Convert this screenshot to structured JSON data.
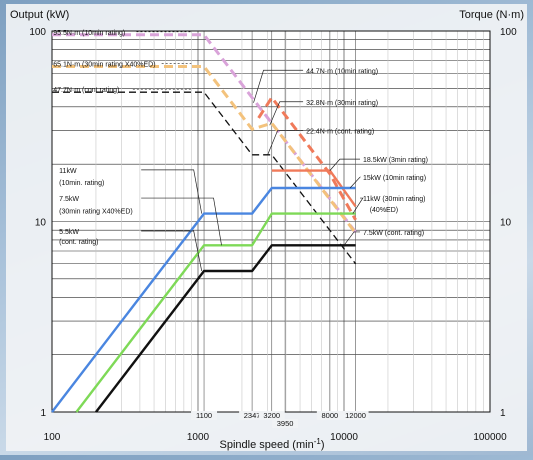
{
  "chart_data": {
    "type": "line",
    "x_scale": "log",
    "y_scale": "log",
    "xlim": [
      100,
      100000
    ],
    "ylim": [
      1,
      100
    ],
    "xlabel": "Spindle speed (min",
    "xlabel_sup": "-1",
    "xlabel_close": ")",
    "ylabel_left": "Output (kW)",
    "ylabel_right": "Torque (N·m)",
    "x_ticks": [
      {
        "value": 100,
        "label": "100"
      },
      {
        "value": 1000,
        "label": "1000"
      },
      {
        "value": 10000,
        "label": "10000"
      },
      {
        "value": 100000,
        "label": "100000"
      }
    ],
    "y_ticks_left": [
      {
        "value": 100,
        "label": "100"
      },
      {
        "value": 10,
        "label": "10"
      },
      {
        "value": 1,
        "label": "1"
      }
    ],
    "y_ticks_right": [
      {
        "value": 100,
        "label": "100"
      },
      {
        "value": 10,
        "label": "10"
      },
      {
        "value": 1,
        "label": "1"
      }
    ],
    "speed_marks": [
      {
        "value": 1100,
        "label": "1100"
      },
      {
        "value": 2347,
        "label": "2347"
      },
      {
        "value": 3200,
        "label": "3200"
      },
      {
        "value": 3950,
        "label": "3950"
      },
      {
        "value": 8000,
        "label": "8000"
      },
      {
        "value": 12000,
        "label": "12000"
      }
    ],
    "grid": true,
    "series": [
      {
        "kind": "torque",
        "style": "dashed",
        "color": "#d9a3d9",
        "x": [
          100,
          1100,
          2347,
          12000
        ],
        "y": [
          95.5,
          95.5,
          44.7,
          8.8
        ]
      },
      {
        "kind": "torque",
        "style": "dashed",
        "color": "#f3c27c",
        "x": [
          100,
          1100,
          2347,
          3200,
          12000
        ],
        "y": [
          65.1,
          65.1,
          30.5,
          32.8,
          8.7
        ]
      },
      {
        "kind": "torque",
        "style": "dashed",
        "color": "#111111",
        "x": [
          100,
          1100,
          2347,
          3200,
          12000
        ],
        "y": [
          47.7,
          47.7,
          22.4,
          22.4,
          6.0
        ]
      },
      {
        "kind": "torque",
        "style": "dashed",
        "color": "#f07a5a",
        "x": [
          2600,
          3200,
          8000,
          12000
        ],
        "y": [
          35,
          44.7,
          17.8,
          10.2
        ]
      },
      {
        "kind": "output",
        "style": "solid",
        "color": "#f07a5a",
        "x": [
          3200,
          8000,
          12000
        ],
        "y": [
          18.5,
          18.5,
          12.0
        ]
      },
      {
        "kind": "output",
        "style": "solid",
        "color": "#4a86e0",
        "x": [
          100,
          1100,
          2347,
          3200,
          12000
        ],
        "y": [
          1.0,
          11,
          11,
          15,
          15
        ]
      },
      {
        "kind": "output",
        "style": "solid",
        "color": "#7ed957",
        "x": [
          100,
          1100,
          2347,
          3200,
          12000
        ],
        "y": [
          0.68,
          7.5,
          7.5,
          11,
          11
        ]
      },
      {
        "kind": "output",
        "style": "solid",
        "color": "#111111",
        "x": [
          100,
          1100,
          2347,
          3200,
          12000
        ],
        "y": [
          0.5,
          5.5,
          5.5,
          7.5,
          7.5
        ]
      }
    ],
    "annotations": [
      {
        "text": "95.5N·m (10min rating)",
        "x": 102,
        "y": 95.5,
        "side": "inside"
      },
      {
        "text": "65.1N·m (30min rating X40%ED)",
        "x": 102,
        "y": 65.1,
        "side": "inside"
      },
      {
        "text": "47.7N·m (cont rating)",
        "x": 102,
        "y": 47.7,
        "side": "inside"
      },
      {
        "text": "44.7N·m (10min rating)",
        "x": 5500,
        "y": 60,
        "point_x": 2400,
        "point_y": 42,
        "side": "right"
      },
      {
        "text": "32.8N·m (30min rating)",
        "x": 5500,
        "y": 41,
        "point_x": 3100,
        "point_y": 32,
        "side": "right"
      },
      {
        "text": "22.4N·m (cont. rating)",
        "x": 5500,
        "y": 29,
        "point_x": 3000,
        "point_y": 22.4,
        "side": "right"
      },
      {
        "text": "18.5kW (3min rating)",
        "x": 13500,
        "y": 20.5,
        "point_x": 8000,
        "point_y": 18.5,
        "side": "right"
      },
      {
        "text": "15kW (10min rating)",
        "x": 13500,
        "y": 16.5,
        "point_x": 11000,
        "point_y": 15,
        "side": "right"
      },
      {
        "text": "11kW (30min rating)",
        "x": 13500,
        "y": 12.8,
        "point_x": 11500,
        "point_y": 11,
        "side": "right"
      },
      {
        "text": "(40%ED)",
        "x": 15000,
        "y": 11.2,
        "side": "none"
      },
      {
        "text": "7.5kW (cont. rating)",
        "x": 13500,
        "y": 8.5,
        "point_x": 10000,
        "point_y": 7.5,
        "side": "right"
      },
      {
        "text": "11kW",
        "x": 112,
        "y": 18.0,
        "point_x": 1060,
        "point_y": 11,
        "side": "left"
      },
      {
        "text": "(10min. rating)",
        "x": 112,
        "y": 15.5,
        "side": "none"
      },
      {
        "text": "7.5kW",
        "x": 112,
        "y": 12.8,
        "point_x": 1450,
        "point_y": 7.5,
        "side": "left"
      },
      {
        "text": "(30min rating X40%ED)",
        "x": 112,
        "y": 11.0,
        "side": "none"
      },
      {
        "text": "5.5kW",
        "x": 112,
        "y": 8.6,
        "point_x": 1060,
        "point_y": 5.5,
        "side": "left"
      },
      {
        "text": "(cont. rating)",
        "x": 112,
        "y": 7.6,
        "side": "none"
      }
    ]
  }
}
